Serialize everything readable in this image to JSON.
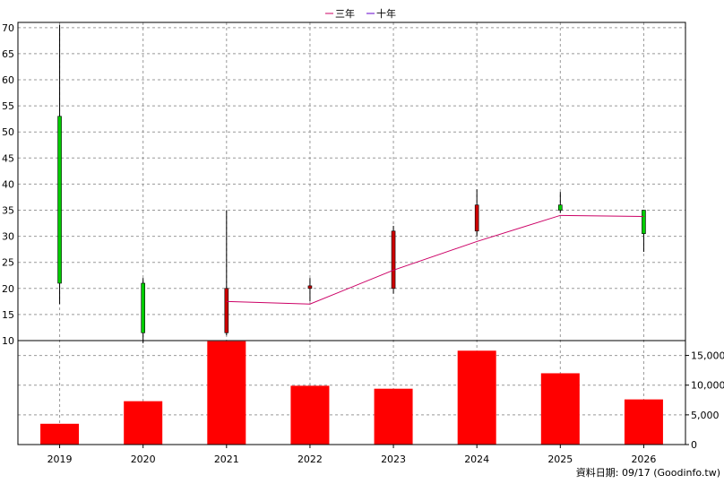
{
  "legend": {
    "items": [
      {
        "label": "三年",
        "color": "#cc0066"
      },
      {
        "label": "十年",
        "color": "#6600cc"
      }
    ]
  },
  "footer": {
    "note": "資料日期: 09/17  (Goodinfo.tw)"
  },
  "chart_data": {
    "type": "candlestick+bar",
    "categories": [
      "2019",
      "2020",
      "2021",
      "2022",
      "2023",
      "2024",
      "2025",
      "2026"
    ],
    "price_axis": {
      "ylim": [
        10,
        71
      ],
      "ticks": [
        10,
        15,
        20,
        25,
        30,
        35,
        40,
        45,
        50,
        55,
        60,
        65,
        70
      ]
    },
    "volume_axis": {
      "ylim": [
        0,
        17500
      ],
      "ticks": [
        0,
        5000,
        10000,
        15000
      ],
      "tick_labels": [
        "0",
        "5,000",
        "10,000",
        "15,000"
      ]
    },
    "candles": [
      {
        "year": "2019",
        "open": 21.0,
        "close": 53.0,
        "high": 70.5,
        "low": 17.0
      },
      {
        "year": "2020",
        "open": 11.5,
        "close": 21.0,
        "high": 22.0,
        "low": 9.5
      },
      {
        "year": "2021",
        "open": 20.0,
        "close": 11.5,
        "high": 35.0,
        "low": 11.0
      },
      {
        "year": "2022",
        "open": 20.5,
        "close": 20.0,
        "high": 22.0,
        "low": 17.5
      },
      {
        "year": "2023",
        "open": 31.0,
        "close": 20.0,
        "high": 32.0,
        "low": 19.0
      },
      {
        "year": "2024",
        "open": 36.0,
        "close": 31.0,
        "high": 39.0,
        "low": 30.0
      },
      {
        "year": "2025",
        "open": 35.0,
        "close": 36.0,
        "high": 38.5,
        "low": 34.5
      },
      {
        "year": "2026",
        "open": 30.5,
        "close": 35.0,
        "high": 35.0,
        "low": 27.0
      }
    ],
    "candle_colors": {
      "up": "#00cc00",
      "down": "#cc0000"
    },
    "series": [
      {
        "name": "三年",
        "color": "#cc0066",
        "x": [
          "2021",
          "2022",
          "2023",
          "2024",
          "2025",
          "2026"
        ],
        "values": [
          17.5,
          17.0,
          23.5,
          29.0,
          34.0,
          33.8
        ]
      }
    ],
    "volume": {
      "color": "#ff0000",
      "values": [
        3500,
        7300,
        17400,
        9900,
        9400,
        15800,
        12000,
        7600
      ]
    },
    "grid": true
  }
}
